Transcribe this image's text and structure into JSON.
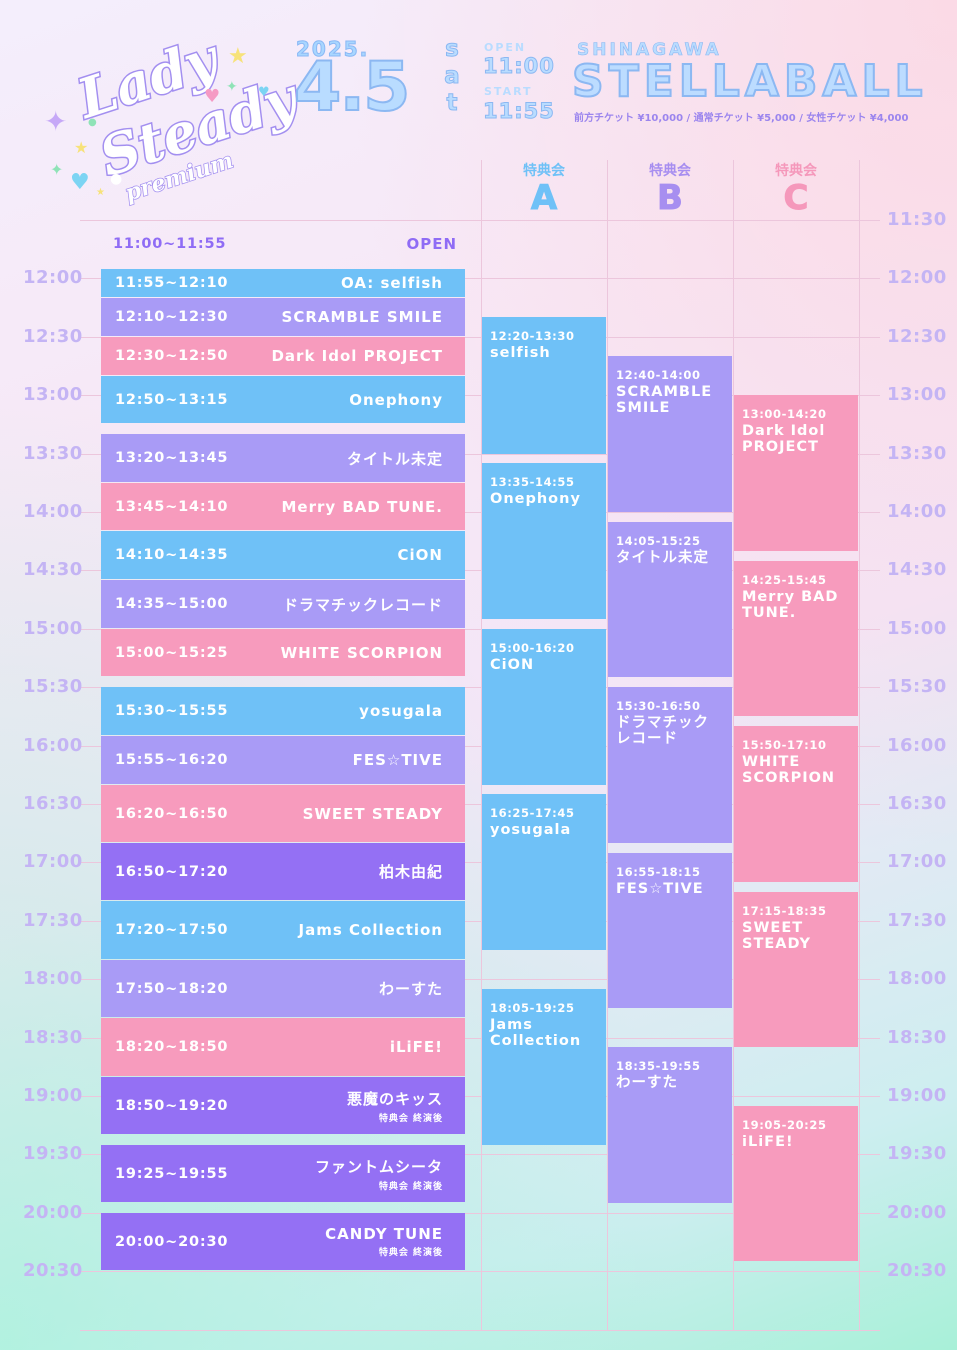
{
  "logo": {
    "line1": "Lady",
    "line2": "Steady",
    "line3": "premium"
  },
  "event": {
    "year": "2025.",
    "month_day": "4.5",
    "dow": [
      "s",
      "a",
      "t"
    ],
    "open_label": "OPEN",
    "open_time": "11:00",
    "start_label": "START",
    "start_time": "11:55",
    "venue_sub": "SHINAGAWA",
    "venue_main": "STELLABALL",
    "tickets": "前方チケット ¥10,000 / 通常チケット ¥5,000 / 女性チケット ¥4,000"
  },
  "columns": [
    {
      "sub": "特典会",
      "letter": "A",
      "color": "#6fc1f7"
    },
    {
      "sub": "特典会",
      "letter": "B",
      "color": "#a78ef0"
    },
    {
      "sub": "特典会",
      "letter": "C",
      "color": "#f598bb"
    }
  ],
  "time_labels_left": [
    "12:00",
    "12:30",
    "13:00",
    "13:30",
    "14:00",
    "14:30",
    "15:00",
    "15:30",
    "16:00",
    "16:30",
    "17:00",
    "17:30",
    "18:00",
    "18:30",
    "19:00",
    "19:30",
    "20:00",
    "20:30"
  ],
  "time_labels_right": [
    "11:30",
    "12:00",
    "12:30",
    "13:00",
    "13:30",
    "14:00",
    "14:30",
    "15:00",
    "15:30",
    "16:00",
    "16:30",
    "17:00",
    "17:30",
    "18:00",
    "18:30",
    "19:00",
    "19:30",
    "20:00",
    "20:30"
  ],
  "open_row": {
    "time": "11:00~11:55",
    "label": "OPEN"
  },
  "live": [
    {
      "time": "11:55~12:10",
      "artist": "OA: selfish",
      "color": "#6fc1f7"
    },
    {
      "time": "12:10~12:30",
      "artist": "SCRAMBLE SMILE",
      "color": "#a99bf6"
    },
    {
      "time": "12:30~12:50",
      "artist": "Dark Idol PROJECT",
      "color": "#f79bbd"
    },
    {
      "time": "12:50~13:15",
      "artist": "Onephony",
      "color": "#6fc1f7"
    },
    {
      "time": "13:20~13:45",
      "artist": "タイトル未定",
      "color": "#a99bf6"
    },
    {
      "time": "13:45~14:10",
      "artist": "Merry BAD TUNE.",
      "color": "#f79bbd"
    },
    {
      "time": "14:10~14:35",
      "artist": "CiON",
      "color": "#6fc1f7"
    },
    {
      "time": "14:35~15:00",
      "artist": "ドラマチックレコード",
      "color": "#a99bf6"
    },
    {
      "time": "15:00~15:25",
      "artist": "WHITE SCORPION",
      "color": "#f79bbd"
    },
    {
      "time": "15:30~15:55",
      "artist": "yosugala",
      "color": "#6fc1f7"
    },
    {
      "time": "15:55~16:20",
      "artist": "FES☆TIVE",
      "color": "#a99bf6"
    },
    {
      "time": "16:20~16:50",
      "artist": "SWEET STEADY",
      "color": "#f79bbd"
    },
    {
      "time": "16:50~17:20",
      "artist": "柏木由紀",
      "color": "#9470f4"
    },
    {
      "time": "17:20~17:50",
      "artist": "Jams Collection",
      "color": "#6fc1f7"
    },
    {
      "time": "17:50~18:20",
      "artist": "わーすた",
      "color": "#a99bf6"
    },
    {
      "time": "18:20~18:50",
      "artist": "iLiFE!",
      "color": "#f79bbd"
    },
    {
      "time": "18:50~19:20",
      "artist": "悪魔のキッス",
      "note": "特典会 終演後",
      "color": "#9470f4"
    },
    {
      "time": "19:25~19:55",
      "artist": "ファントムシータ",
      "note": "特典会 終演後",
      "color": "#9470f4"
    },
    {
      "time": "20:00~20:30",
      "artist": "CANDY TUNE",
      "note": "特典会 終演後",
      "color": "#9470f4"
    }
  ],
  "booths": [
    {
      "col": 0,
      "time": "12:20-13:30",
      "artist": "selfish",
      "color": "#6fc1f7"
    },
    {
      "col": 0,
      "time": "13:35-14:55",
      "artist": "Onephony",
      "color": "#6fc1f7"
    },
    {
      "col": 0,
      "time": "15:00-16:20",
      "artist": "CiON",
      "color": "#6fc1f7"
    },
    {
      "col": 0,
      "time": "16:25-17:45",
      "artist": "yosugala",
      "color": "#6fc1f7"
    },
    {
      "col": 0,
      "time": "18:05-19:25",
      "artist": "Jams Collection",
      "color": "#6fc1f7"
    },
    {
      "col": 1,
      "time": "12:40-14:00",
      "artist": "SCRAMBLE SMILE",
      "color": "#a99bf6"
    },
    {
      "col": 1,
      "time": "14:05-15:25",
      "artist": "タイトル未定",
      "color": "#a99bf6"
    },
    {
      "col": 1,
      "time": "15:30-16:50",
      "artist": "ドラマチックレコード",
      "color": "#a99bf6"
    },
    {
      "col": 1,
      "time": "16:55-18:15",
      "artist": "FES☆TIVE",
      "color": "#a99bf6"
    },
    {
      "col": 1,
      "time": "18:35-19:55",
      "artist": "わーすた",
      "color": "#a99bf6"
    },
    {
      "col": 2,
      "time": "13:00-14:20",
      "artist": "Dark Idol PROJECT",
      "color": "#f79bbd"
    },
    {
      "col": 2,
      "time": "14:25-15:45",
      "artist": "Merry BAD TUNE.",
      "color": "#f79bbd"
    },
    {
      "col": 2,
      "time": "15:50-17:10",
      "artist": "WHITE SCORPION",
      "color": "#f79bbd"
    },
    {
      "col": 2,
      "time": "17:15-18:35",
      "artist": "SWEET STEADY",
      "color": "#f79bbd"
    },
    {
      "col": 2,
      "time": "19:05-20:25",
      "artist": "iLiFE!",
      "color": "#f79bbd"
    }
  ]
}
